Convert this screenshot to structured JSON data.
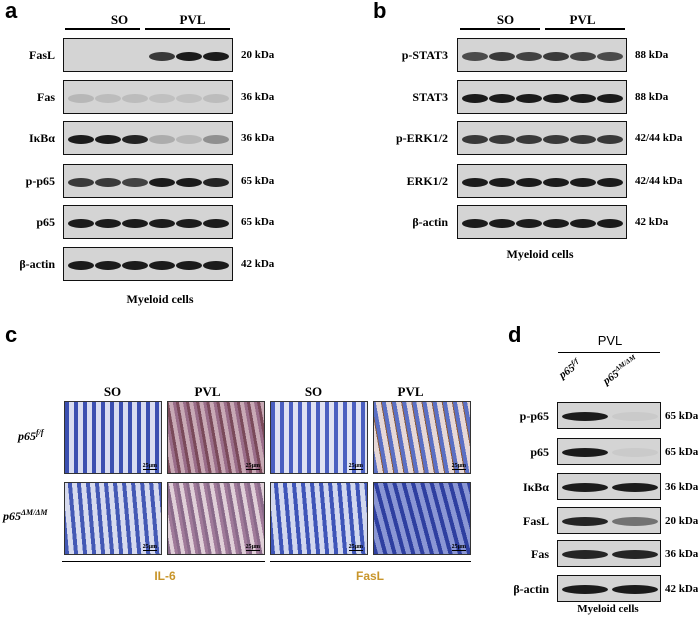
{
  "panel_a": {
    "letter": "a",
    "groups": [
      "SO",
      "PVL"
    ],
    "rows": [
      {
        "label": "FasL",
        "kda": "20 kDa"
      },
      {
        "label": "Fas",
        "kda": "36 kDa"
      },
      {
        "label": "IκBα",
        "kda": "36 kDa"
      },
      {
        "label": "p-p65",
        "kda": "65 kDa"
      },
      {
        "label": "p65",
        "kda": "65 kDa"
      },
      {
        "label": "β-actin",
        "kda": "42 kDa"
      }
    ],
    "caption": "Myeloid cells"
  },
  "panel_b": {
    "letter": "b",
    "groups": [
      "SO",
      "PVL"
    ],
    "rows": [
      {
        "label": "p-STAT3",
        "kda": "88 kDa"
      },
      {
        "label": "STAT3",
        "kda": "88 kDa"
      },
      {
        "label": "p-ERK1/2",
        "kda": "42/44 kDa"
      },
      {
        "label": "ERK1/2",
        "kda": "42/44 kDa"
      },
      {
        "label": "β-actin",
        "kda": "42 kDa"
      }
    ],
    "caption": "Myeloid cells"
  },
  "panel_c": {
    "letter": "c",
    "cols": [
      "SO",
      "PVL",
      "SO",
      "PVL"
    ],
    "rows": [
      {
        "prefix": "p65",
        "sup": "f/f"
      },
      {
        "prefix": "p65",
        "sup": "ΔM/ΔM"
      }
    ],
    "scale_label": "25μm",
    "stains": [
      "IL-6",
      "FasL"
    ]
  },
  "panel_d": {
    "letter": "d",
    "group": "PVL",
    "lanes": [
      {
        "prefix": "p65",
        "sup": "f/f"
      },
      {
        "prefix": "p65",
        "sup": "ΔM/ΔM"
      }
    ],
    "rows": [
      {
        "label": "p-p65",
        "kda": "65 kDa"
      },
      {
        "label": "p65",
        "kda": "65 kDa"
      },
      {
        "label": "IκBα",
        "kda": "36 kDa"
      },
      {
        "label": "FasL",
        "kda": "20 kDa"
      },
      {
        "label": "Fas",
        "kda": "36 kDa"
      },
      {
        "label": "β-actin",
        "kda": "42 kDa"
      }
    ],
    "caption": "Myeloid cells"
  },
  "colors": {
    "stain_label": "#c8952a",
    "he_blue": "#5b6fc4",
    "ihc_brown": "#8a5a3a"
  }
}
